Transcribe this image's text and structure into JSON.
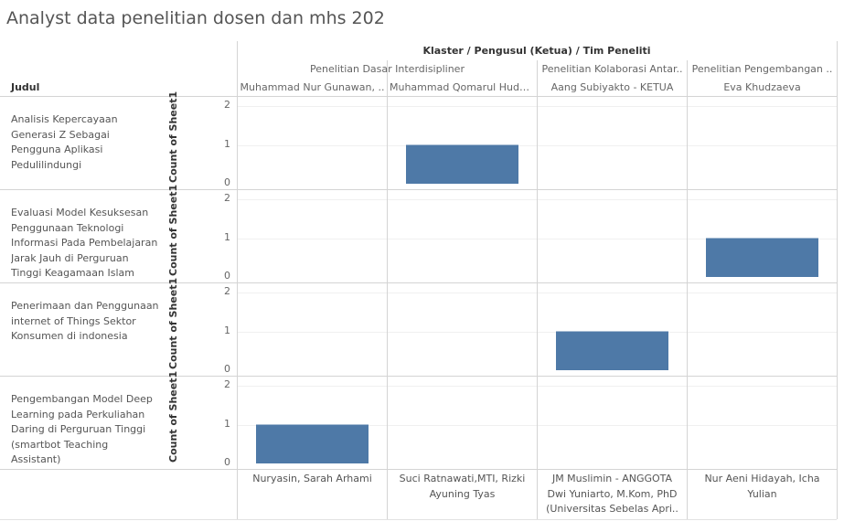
{
  "title": "Analyst data penelitian dosen dan mhs 202",
  "column_header_title": "Klaster  /  Pengusul (Ketua)  /  Tim Peneliti",
  "row_header_title": "Judul",
  "chart_data": {
    "type": "bar",
    "ylabel": "Count of Sheet1",
    "ylim": [
      0,
      2
    ],
    "yticks": [
      0,
      1,
      2
    ],
    "klaster": [
      {
        "label": "Penelitian Dasar Interdisipliner",
        "span": [
          0,
          1
        ]
      },
      {
        "label": "Penelitian Kolaborasi Antar..",
        "span": [
          2,
          2
        ]
      },
      {
        "label": "Penelitian Pengembangan ..",
        "span": [
          3,
          3
        ]
      }
    ],
    "columns": [
      {
        "pengusul": "Muhammad Nur Gunawan, ..",
        "tim": "Nuryasin, Sarah Arhami"
      },
      {
        "pengusul": "Muhammad Qomarul Huda,..",
        "tim": "Suci Ratnawati,MTI, Rizki Ayuning Tyas"
      },
      {
        "pengusul": "Aang Subiyakto - KETUA",
        "tim": "JM Muslimin - ANGGOTA Dwi Yuniarto, M.Kom, PhD (Universitas Sebelas Apri.."
      },
      {
        "pengusul": "Eva Khudzaeva",
        "tim": "Nur Aeni Hidayah, Icha Yulian"
      }
    ],
    "rows": [
      {
        "judul": "Analisis Kepercayaan Generasi Z Sebagai Pengguna Aplikasi Pedulilindungi",
        "values": [
          null,
          1,
          null,
          null
        ]
      },
      {
        "judul": "Evaluasi Model Kesuksesan Penggunaan Teknologi Informasi Pada Pembelajaran Jarak Jauh di Perguruan Tinggi Keagamaan Islam Negeri (P..",
        "values": [
          null,
          null,
          null,
          1
        ]
      },
      {
        "judul": "Penerimaan dan Penggunaan internet of Things Sektor Konsumen di indonesia",
        "values": [
          null,
          null,
          1,
          null
        ]
      },
      {
        "judul": "Pengembangan Model Deep Learning pada Perkuliahan Daring di Perguruan Tinggi (smartbot Teaching Assistant)",
        "values": [
          1,
          null,
          null,
          null
        ]
      }
    ],
    "bar_color": "#4e79a7",
    "grid": true
  }
}
